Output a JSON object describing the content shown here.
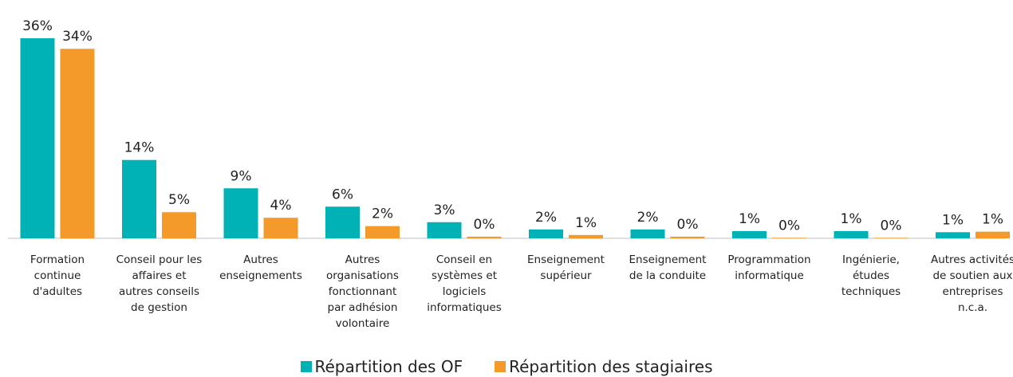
{
  "chart_data": {
    "type": "bar",
    "categories": [
      "Formation continue d'adultes",
      "Conseil pour les affaires et autres conseils de gestion",
      "Autres enseignements",
      "Autres organisations fonctionnant par adhésion volontaire",
      "Conseil en systèmes et logiciels informatiques",
      "Enseignement supérieur",
      "Enseignement de la conduite",
      "Programmation informatique",
      "Ingénierie, études techniques",
      "Autres activités de soutien aux entreprises n.c.a."
    ],
    "series": [
      {
        "name": "Répartition des OF",
        "color": "#00b2b5",
        "values": [
          36,
          14.1,
          9,
          5.7,
          2.9,
          1.6,
          1.6,
          1.3,
          1.3,
          1.1
        ],
        "value_labels": [
          "36%",
          "14%",
          "9%",
          "6%",
          "3%",
          "2%",
          "2%",
          "1%",
          "1%",
          "1%"
        ]
      },
      {
        "name": "Répartition des stagiaires",
        "color": "#f39a2b",
        "values": [
          34.1,
          4.7,
          3.7,
          2.2,
          0.3,
          0.6,
          0.3,
          0.1,
          0.1,
          1.2
        ],
        "value_labels": [
          "34%",
          "5%",
          "4%",
          "2%",
          "0%",
          "1%",
          "0%",
          "0%",
          "0%",
          "1%"
        ]
      }
    ]
  }
}
